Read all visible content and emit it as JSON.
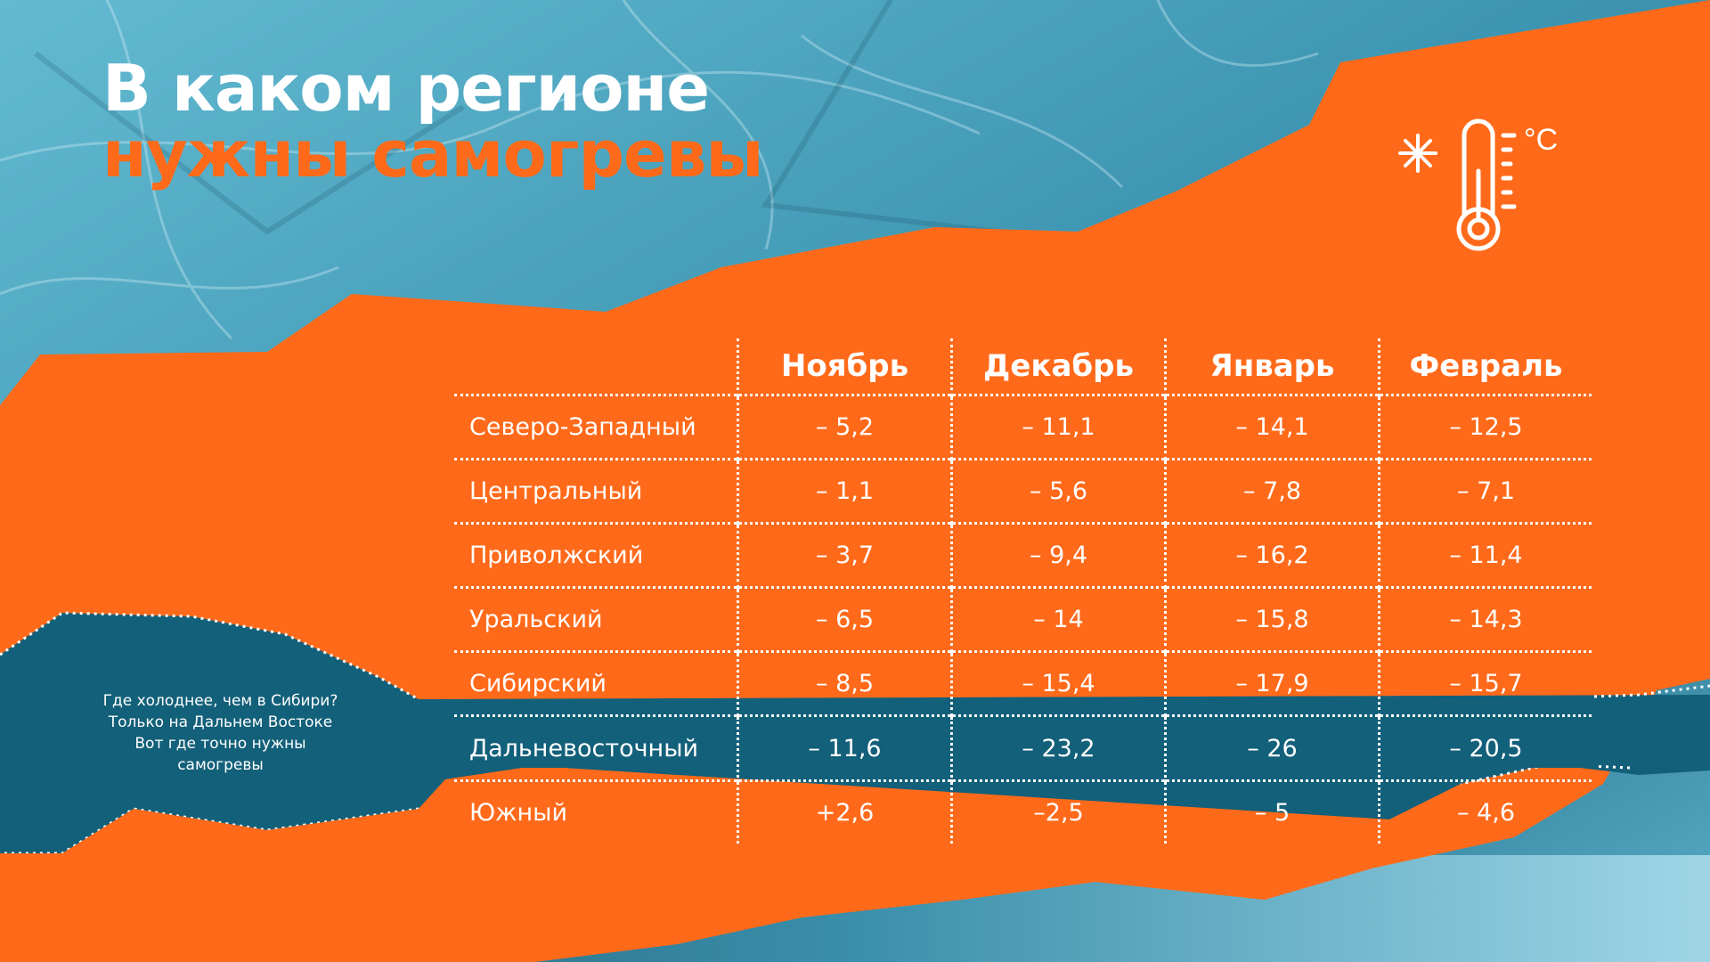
{
  "colors": {
    "orange": "#ff6a1a",
    "ice_blue": "#4aa3bd",
    "dark_teal": "#13607a",
    "white": "#ffffff"
  },
  "title": {
    "line1": "В каком регионе",
    "line2": "нужны самогревы"
  },
  "thermometer": {
    "icon": "thermometer-icon",
    "snow_icon": "snowflake-icon",
    "unit": "°C"
  },
  "note": {
    "lines": [
      "Где холоднее, чем в Сибири?",
      "Только на Дальнем Востоке",
      "Вот где точно нужны",
      "самогревы"
    ]
  },
  "table": {
    "columns": [
      "Ноябрь",
      "Декабрь",
      "Январь",
      "Февраль"
    ],
    "rows": [
      {
        "region": "Северо-Западный",
        "values": [
          "– 5,2",
          "– 11,1",
          "– 14,1",
          "– 12,5"
        ]
      },
      {
        "region": "Центральный",
        "values": [
          "– 1,1",
          "– 5,6",
          "– 7,8",
          "– 7,1"
        ]
      },
      {
        "region": "Приволжский",
        "values": [
          "– 3,7",
          "– 9,4",
          "– 16,2",
          "– 11,4"
        ]
      },
      {
        "region": "Уральский",
        "values": [
          "– 6,5",
          "– 14",
          "– 15,8",
          "– 14,3"
        ]
      },
      {
        "region": "Сибирский",
        "values": [
          "– 8,5",
          "– 15,4",
          "– 17,9",
          "– 15,7"
        ]
      },
      {
        "region": "Дальневосточный",
        "values": [
          "– 11,6",
          "– 23,2",
          "– 26",
          "– 20,5"
        ],
        "highlighted": true
      },
      {
        "region": "Южный",
        "values": [
          "+2,6",
          "–2,5",
          "– 5",
          "– 4,6"
        ]
      }
    ]
  }
}
